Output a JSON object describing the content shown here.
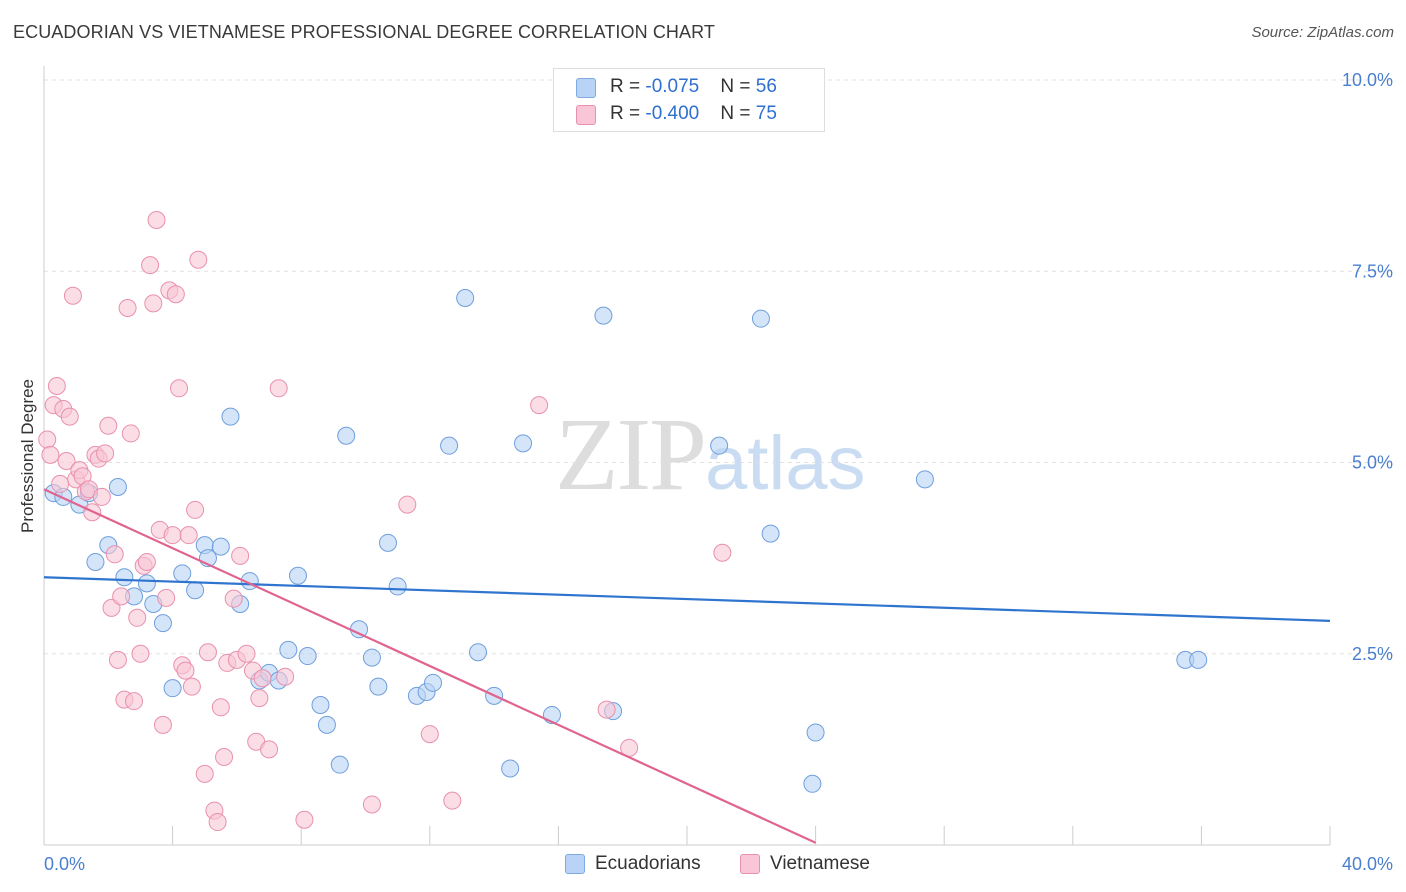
{
  "title": "ECUADORIAN VS VIETNAMESE PROFESSIONAL DEGREE CORRELATION CHART",
  "source": "Source: ZipAtlas.com",
  "watermark": {
    "zip": "ZIP",
    "atlas": "atlas"
  },
  "legend": {
    "rows": [
      {
        "r_label": "R = ",
        "r_value": "-0.075",
        "n_label": "N = ",
        "n_value": "56",
        "color": "#b8d3f5",
        "border": "#7fa9e0"
      },
      {
        "r_label": "R = ",
        "r_value": "-0.400",
        "n_label": "N = ",
        "n_value": "75",
        "color": "#f8c6d6",
        "border": "#e990ae"
      }
    ]
  },
  "bottom_legend": [
    {
      "label": "Ecuadorians",
      "color": "#b8d3f5",
      "border": "#7fa9e0"
    },
    {
      "label": "Vietnamese",
      "color": "#f8c6d6",
      "border": "#e990ae"
    }
  ],
  "chart_data": {
    "type": "scatter",
    "title": "ECUADORIAN VS VIETNAMESE PROFESSIONAL DEGREE CORRELATION CHART",
    "xlabel": "",
    "ylabel": "Professional Degree",
    "xlim": [
      0,
      40
    ],
    "ylim": [
      0,
      10
    ],
    "x_tick_labels": [
      {
        "value": 0,
        "label": "0.0%"
      },
      {
        "value": 40,
        "label": "40.0%"
      }
    ],
    "y_tick_labels": [
      {
        "value": 2.5,
        "label": "2.5%"
      },
      {
        "value": 5.0,
        "label": "5.0%"
      },
      {
        "value": 7.5,
        "label": "7.5%"
      },
      {
        "value": 10.0,
        "label": "10.0%"
      }
    ],
    "grid": true,
    "legend_position": "top-center",
    "series": [
      {
        "name": "Ecuadorians",
        "color": "#b8d3f5",
        "border": "#6f9fdc",
        "line_color": "#2f75cf",
        "trend": {
          "x": [
            0,
            40
          ],
          "y": [
            3.5,
            2.93
          ]
        },
        "points": [
          [
            0.3,
            4.6
          ],
          [
            0.6,
            4.55
          ],
          [
            1.1,
            4.45
          ],
          [
            1.4,
            4.6
          ],
          [
            1.6,
            3.7
          ],
          [
            2.0,
            3.92
          ],
          [
            2.3,
            4.68
          ],
          [
            2.5,
            3.5
          ],
          [
            2.8,
            3.25
          ],
          [
            3.2,
            3.42
          ],
          [
            3.4,
            3.15
          ],
          [
            3.7,
            2.9
          ],
          [
            4.0,
            2.05
          ],
          [
            4.3,
            3.55
          ],
          [
            4.7,
            3.33
          ],
          [
            5.0,
            3.92
          ],
          [
            5.1,
            3.75
          ],
          [
            5.5,
            3.9
          ],
          [
            5.8,
            5.6
          ],
          [
            6.1,
            3.15
          ],
          [
            6.4,
            3.45
          ],
          [
            6.7,
            2.15
          ],
          [
            7.0,
            2.25
          ],
          [
            7.3,
            2.15
          ],
          [
            7.6,
            2.55
          ],
          [
            7.9,
            3.52
          ],
          [
            8.2,
            2.47
          ],
          [
            8.6,
            1.83
          ],
          [
            8.8,
            1.57
          ],
          [
            9.2,
            1.05
          ],
          [
            9.4,
            5.35
          ],
          [
            9.8,
            2.82
          ],
          [
            10.2,
            2.45
          ],
          [
            10.4,
            2.07
          ],
          [
            10.7,
            3.95
          ],
          [
            11.0,
            3.38
          ],
          [
            11.6,
            1.95
          ],
          [
            11.9,
            2.0
          ],
          [
            12.1,
            2.12
          ],
          [
            12.6,
            5.22
          ],
          [
            13.1,
            7.15
          ],
          [
            13.5,
            2.52
          ],
          [
            14.0,
            1.95
          ],
          [
            14.5,
            1.0
          ],
          [
            14.9,
            5.25
          ],
          [
            15.8,
            1.7
          ],
          [
            17.4,
            6.92
          ],
          [
            17.7,
            1.75
          ],
          [
            21.0,
            5.22
          ],
          [
            22.3,
            6.88
          ],
          [
            22.6,
            4.07
          ],
          [
            23.9,
            0.8
          ],
          [
            24.0,
            1.47
          ],
          [
            27.4,
            4.78
          ],
          [
            35.5,
            2.42
          ],
          [
            35.9,
            2.42
          ]
        ]
      },
      {
        "name": "Vietnamese",
        "color": "#f8c6d6",
        "border": "#e990ae",
        "line_color": "#e0648f",
        "trend": {
          "x": [
            0,
            24
          ],
          "y": [
            4.65,
            0.03
          ]
        },
        "points": [
          [
            0.1,
            5.3
          ],
          [
            0.2,
            5.1
          ],
          [
            0.3,
            5.75
          ],
          [
            0.4,
            6.0
          ],
          [
            0.5,
            4.72
          ],
          [
            0.6,
            5.7
          ],
          [
            0.7,
            5.02
          ],
          [
            0.8,
            5.6
          ],
          [
            0.9,
            7.18
          ],
          [
            1.0,
            4.78
          ],
          [
            1.1,
            4.9
          ],
          [
            1.2,
            4.82
          ],
          [
            1.3,
            4.62
          ],
          [
            1.4,
            4.65
          ],
          [
            1.5,
            4.35
          ],
          [
            1.6,
            5.1
          ],
          [
            1.7,
            5.05
          ],
          [
            1.8,
            4.55
          ],
          [
            1.9,
            5.12
          ],
          [
            2.0,
            5.48
          ],
          [
            2.1,
            3.1
          ],
          [
            2.2,
            3.8
          ],
          [
            2.3,
            2.42
          ],
          [
            2.4,
            3.25
          ],
          [
            2.5,
            1.9
          ],
          [
            2.6,
            7.02
          ],
          [
            2.7,
            5.38
          ],
          [
            2.8,
            1.88
          ],
          [
            2.9,
            2.97
          ],
          [
            3.0,
            2.5
          ],
          [
            3.1,
            3.65
          ],
          [
            3.2,
            3.7
          ],
          [
            3.3,
            7.58
          ],
          [
            3.4,
            7.08
          ],
          [
            3.5,
            8.17
          ],
          [
            3.6,
            4.12
          ],
          [
            3.7,
            1.57
          ],
          [
            3.8,
            3.23
          ],
          [
            3.9,
            7.25
          ],
          [
            4.0,
            4.05
          ],
          [
            4.1,
            7.2
          ],
          [
            4.2,
            5.97
          ],
          [
            4.3,
            2.35
          ],
          [
            4.4,
            2.28
          ],
          [
            4.5,
            4.05
          ],
          [
            4.6,
            2.07
          ],
          [
            4.7,
            4.38
          ],
          [
            4.8,
            7.65
          ],
          [
            5.0,
            0.93
          ],
          [
            5.1,
            2.52
          ],
          [
            5.3,
            0.45
          ],
          [
            5.4,
            0.3
          ],
          [
            5.5,
            1.8
          ],
          [
            5.6,
            1.15
          ],
          [
            5.7,
            2.38
          ],
          [
            5.9,
            3.22
          ],
          [
            6.0,
            2.42
          ],
          [
            6.1,
            3.78
          ],
          [
            6.3,
            2.5
          ],
          [
            6.5,
            2.28
          ],
          [
            6.6,
            1.35
          ],
          [
            6.7,
            1.92
          ],
          [
            6.8,
            2.18
          ],
          [
            7.0,
            1.25
          ],
          [
            7.3,
            5.97
          ],
          [
            8.1,
            0.33
          ],
          [
            10.2,
            0.53
          ],
          [
            11.3,
            4.45
          ],
          [
            12.0,
            1.45
          ],
          [
            12.7,
            0.58
          ],
          [
            15.4,
            5.75
          ],
          [
            17.5,
            1.77
          ],
          [
            18.2,
            1.27
          ],
          [
            21.1,
            3.82
          ],
          [
            7.5,
            2.2
          ]
        ]
      }
    ]
  }
}
